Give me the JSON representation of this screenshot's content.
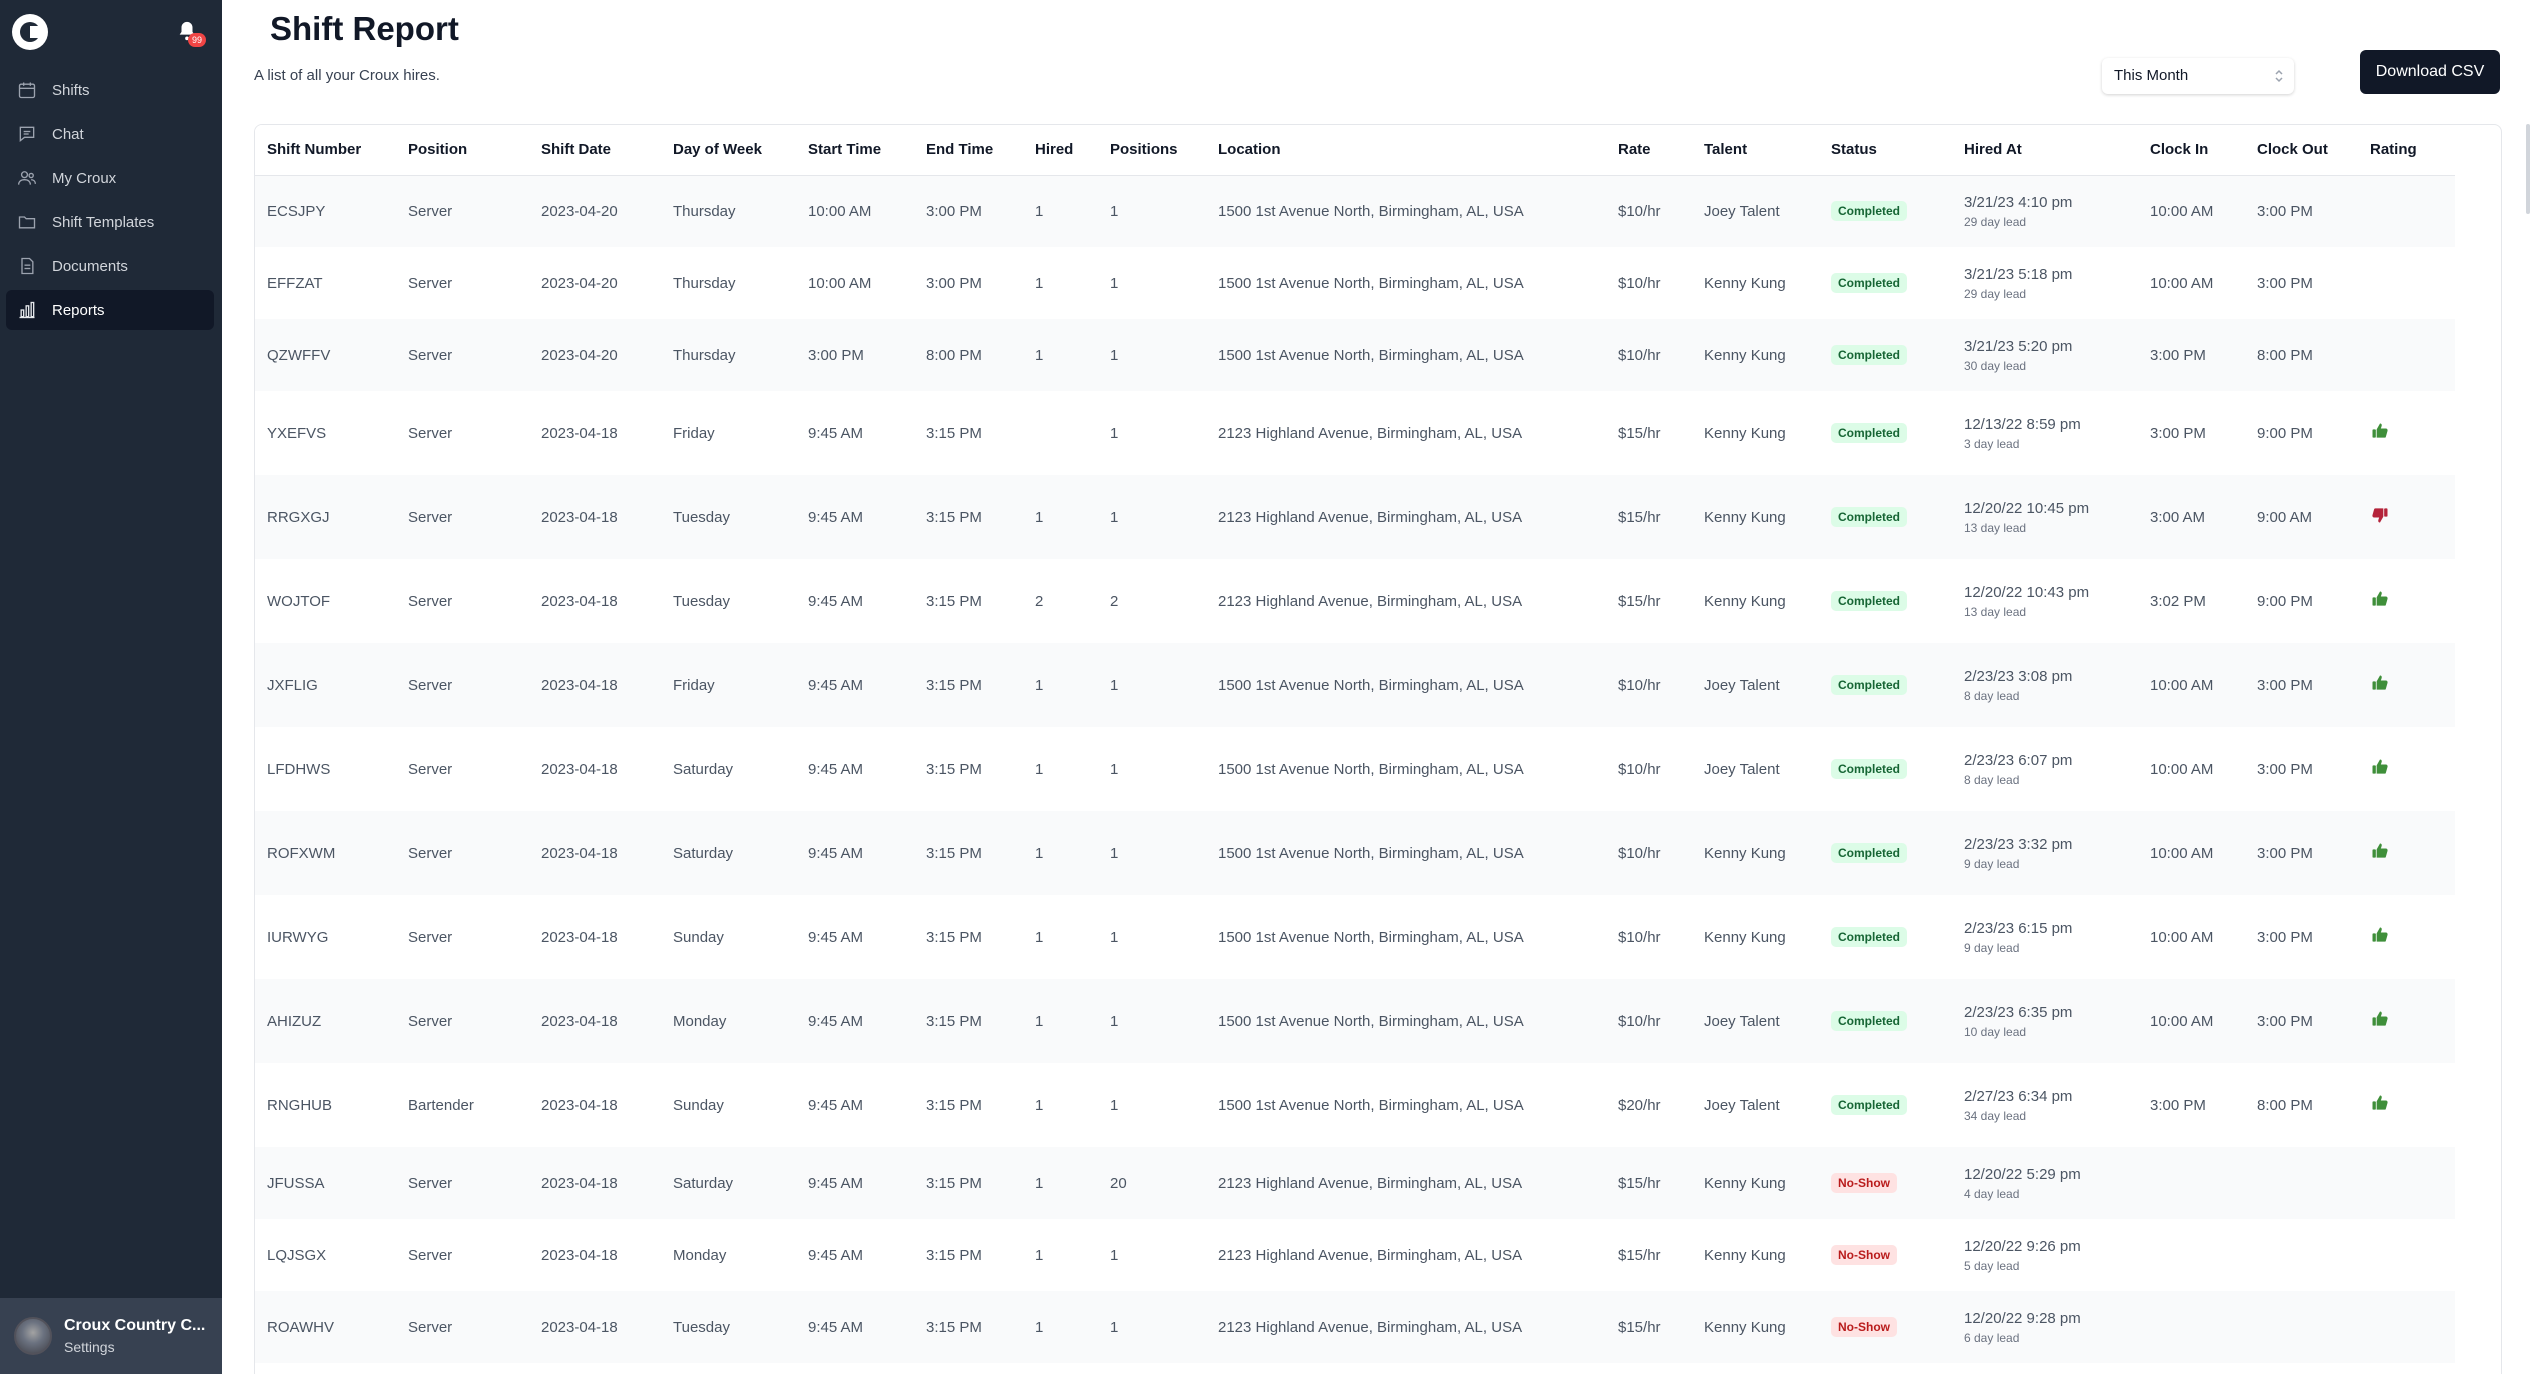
{
  "sidebar": {
    "notification_count": "99",
    "items": [
      {
        "label": "Shifts",
        "icon": "calendar-icon",
        "active": false
      },
      {
        "label": "Chat",
        "icon": "chat-icon",
        "active": false
      },
      {
        "label": "My Croux",
        "icon": "users-icon",
        "active": false
      },
      {
        "label": "Shift Templates",
        "icon": "folder-icon",
        "active": false
      },
      {
        "label": "Documents",
        "icon": "document-icon",
        "active": false
      },
      {
        "label": "Reports",
        "icon": "bar-chart-icon",
        "active": true
      }
    ],
    "profile": {
      "name": "Croux Country C...",
      "sub": "Settings"
    }
  },
  "header": {
    "title": "Shift Report",
    "subtitle": "A list of all your Croux hires.",
    "period": "This Month",
    "download_label": "Download CSV"
  },
  "table": {
    "columns": [
      "Shift Number",
      "Position",
      "Shift Date",
      "Day of Week",
      "Start Time",
      "End Time",
      "Hired",
      "Positions",
      "Location",
      "Rate",
      "Talent",
      "Status",
      "Hired At",
      "Clock In",
      "Clock Out",
      "Rating"
    ],
    "rows": [
      {
        "shift": "ECSJPY",
        "position": "Server",
        "date": "2023-04-20",
        "day": "Thursday",
        "start": "10:00 AM",
        "end": "3:00 PM",
        "hired": "1",
        "positions": "1",
        "location": "1500 1st Avenue North, Birmingham, AL, USA",
        "rate": "$10/hr",
        "talent": "Joey Talent",
        "status": "Completed",
        "hired_at": "3/21/23 4:10 pm",
        "lead": "29 day lead",
        "clock_in": "10:00 AM",
        "clock_out": "3:00 PM",
        "rating": ""
      },
      {
        "shift": "EFFZAT",
        "position": "Server",
        "date": "2023-04-20",
        "day": "Thursday",
        "start": "10:00 AM",
        "end": "3:00 PM",
        "hired": "1",
        "positions": "1",
        "location": "1500 1st Avenue North, Birmingham, AL, USA",
        "rate": "$10/hr",
        "talent": "Kenny Kung",
        "status": "Completed",
        "hired_at": "3/21/23 5:18 pm",
        "lead": "29 day lead",
        "clock_in": "10:00 AM",
        "clock_out": "3:00 PM",
        "rating": ""
      },
      {
        "shift": "QZWFFV",
        "position": "Server",
        "date": "2023-04-20",
        "day": "Thursday",
        "start": "3:00 PM",
        "end": "8:00 PM",
        "hired": "1",
        "positions": "1",
        "location": "1500 1st Avenue North, Birmingham, AL, USA",
        "rate": "$10/hr",
        "talent": "Kenny Kung",
        "status": "Completed",
        "hired_at": "3/21/23 5:20 pm",
        "lead": "30 day lead",
        "clock_in": "3:00 PM",
        "clock_out": "8:00 PM",
        "rating": ""
      },
      {
        "shift": "YXEFVS",
        "position": "Server",
        "date": "2023-04-18",
        "day": "Friday",
        "start": "9:45 AM",
        "end": "3:15 PM",
        "hired": "",
        "positions": "1",
        "location": "2123 Highland Avenue, Birmingham, AL, USA",
        "rate": "$15/hr",
        "talent": "Kenny Kung",
        "status": "Completed",
        "hired_at": "12/13/22 8:59 pm",
        "lead": "3 day lead",
        "clock_in": "3:00 PM",
        "clock_out": "9:00 PM",
        "rating": "up"
      },
      {
        "shift": "RRGXGJ",
        "position": "Server",
        "date": "2023-04-18",
        "day": "Tuesday",
        "start": "9:45 AM",
        "end": "3:15 PM",
        "hired": "1",
        "positions": "1",
        "location": "2123 Highland Avenue, Birmingham, AL, USA",
        "rate": "$15/hr",
        "talent": "Kenny Kung",
        "status": "Completed",
        "hired_at": "12/20/22 10:45 pm",
        "lead": "13 day lead",
        "clock_in": "3:00 AM",
        "clock_out": "9:00 AM",
        "rating": "down"
      },
      {
        "shift": "WOJTOF",
        "position": "Server",
        "date": "2023-04-18",
        "day": "Tuesday",
        "start": "9:45 AM",
        "end": "3:15 PM",
        "hired": "2",
        "positions": "2",
        "location": "2123 Highland Avenue, Birmingham, AL, USA",
        "rate": "$15/hr",
        "talent": "Kenny Kung",
        "status": "Completed",
        "hired_at": "12/20/22 10:43 pm",
        "lead": "13 day lead",
        "clock_in": "3:02 PM",
        "clock_out": "9:00 PM",
        "rating": "up"
      },
      {
        "shift": "JXFLIG",
        "position": "Server",
        "date": "2023-04-18",
        "day": "Friday",
        "start": "9:45 AM",
        "end": "3:15 PM",
        "hired": "1",
        "positions": "1",
        "location": "1500 1st Avenue North, Birmingham, AL, USA",
        "rate": "$10/hr",
        "talent": "Joey Talent",
        "status": "Completed",
        "hired_at": "2/23/23 3:08 pm",
        "lead": "8 day lead",
        "clock_in": "10:00 AM",
        "clock_out": "3:00 PM",
        "rating": "up"
      },
      {
        "shift": "LFDHWS",
        "position": "Server",
        "date": "2023-04-18",
        "day": "Saturday",
        "start": "9:45 AM",
        "end": "3:15 PM",
        "hired": "1",
        "positions": "1",
        "location": "1500 1st Avenue North, Birmingham, AL, USA",
        "rate": "$10/hr",
        "talent": "Joey Talent",
        "status": "Completed",
        "hired_at": "2/23/23 6:07 pm",
        "lead": "8 day lead",
        "clock_in": "10:00 AM",
        "clock_out": "3:00 PM",
        "rating": "up"
      },
      {
        "shift": "ROFXWM",
        "position": "Server",
        "date": "2023-04-18",
        "day": "Saturday",
        "start": "9:45 AM",
        "end": "3:15 PM",
        "hired": "1",
        "positions": "1",
        "location": "1500 1st Avenue North, Birmingham, AL, USA",
        "rate": "$10/hr",
        "talent": "Kenny Kung",
        "status": "Completed",
        "hired_at": "2/23/23 3:32 pm",
        "lead": "9 day lead",
        "clock_in": "10:00 AM",
        "clock_out": "3:00 PM",
        "rating": "up"
      },
      {
        "shift": "IURWYG",
        "position": "Server",
        "date": "2023-04-18",
        "day": "Sunday",
        "start": "9:45 AM",
        "end": "3:15 PM",
        "hired": "1",
        "positions": "1",
        "location": "1500 1st Avenue North, Birmingham, AL, USA",
        "rate": "$10/hr",
        "talent": "Kenny Kung",
        "status": "Completed",
        "hired_at": "2/23/23 6:15 pm",
        "lead": "9 day lead",
        "clock_in": "10:00 AM",
        "clock_out": "3:00 PM",
        "rating": "up"
      },
      {
        "shift": "AHIZUZ",
        "position": "Server",
        "date": "2023-04-18",
        "day": "Monday",
        "start": "9:45 AM",
        "end": "3:15 PM",
        "hired": "1",
        "positions": "1",
        "location": "1500 1st Avenue North, Birmingham, AL, USA",
        "rate": "$10/hr",
        "talent": "Joey Talent",
        "status": "Completed",
        "hired_at": "2/23/23 6:35 pm",
        "lead": "10 day lead",
        "clock_in": "10:00 AM",
        "clock_out": "3:00 PM",
        "rating": "up"
      },
      {
        "shift": "RNGHUB",
        "position": "Bartender",
        "date": "2023-04-18",
        "day": "Sunday",
        "start": "9:45 AM",
        "end": "3:15 PM",
        "hired": "1",
        "positions": "1",
        "location": "1500 1st Avenue North, Birmingham, AL, USA",
        "rate": "$20/hr",
        "talent": "Joey Talent",
        "status": "Completed",
        "hired_at": "2/27/23 6:34 pm",
        "lead": "34 day lead",
        "clock_in": "3:00 PM",
        "clock_out": "8:00 PM",
        "rating": "up"
      },
      {
        "shift": "JFUSSA",
        "position": "Server",
        "date": "2023-04-18",
        "day": "Saturday",
        "start": "9:45 AM",
        "end": "3:15 PM",
        "hired": "1",
        "positions": "20",
        "location": "2123 Highland Avenue, Birmingham, AL, USA",
        "rate": "$15/hr",
        "talent": "Kenny Kung",
        "status": "No-Show",
        "hired_at": "12/20/22 5:29 pm",
        "lead": "4 day lead",
        "clock_in": "",
        "clock_out": "",
        "rating": ""
      },
      {
        "shift": "LQJSGX",
        "position": "Server",
        "date": "2023-04-18",
        "day": "Monday",
        "start": "9:45 AM",
        "end": "3:15 PM",
        "hired": "1",
        "positions": "1",
        "location": "2123 Highland Avenue, Birmingham, AL, USA",
        "rate": "$15/hr",
        "talent": "Kenny Kung",
        "status": "No-Show",
        "hired_at": "12/20/22 9:26 pm",
        "lead": "5 day lead",
        "clock_in": "",
        "clock_out": "",
        "rating": ""
      },
      {
        "shift": "ROAWHV",
        "position": "Server",
        "date": "2023-04-18",
        "day": "Tuesday",
        "start": "9:45 AM",
        "end": "3:15 PM",
        "hired": "1",
        "positions": "1",
        "location": "2123 Highland Avenue, Birmingham, AL, USA",
        "rate": "$15/hr",
        "talent": "Kenny Kung",
        "status": "No-Show",
        "hired_at": "12/20/22 9:28 pm",
        "lead": "6 day lead",
        "clock_in": "",
        "clock_out": "",
        "rating": ""
      }
    ]
  },
  "colors": {
    "sidebar": "#1f2937",
    "completed": "#166534",
    "no_show": "#b91c1c",
    "thumb_up": "#3f8f3a",
    "thumb_down": "#b4233a"
  }
}
